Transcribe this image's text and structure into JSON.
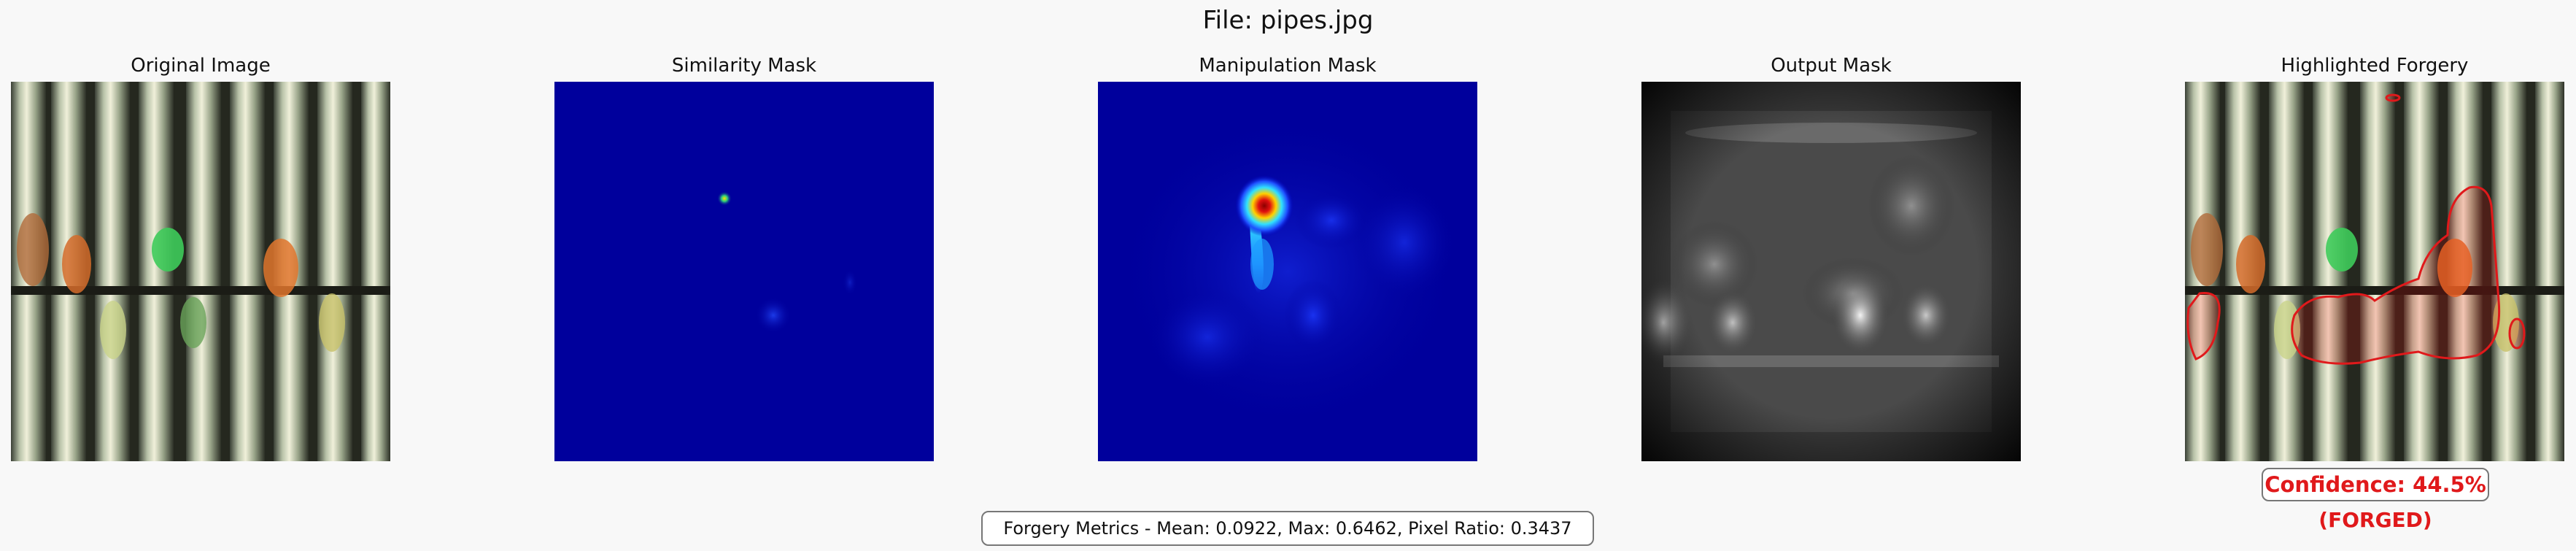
{
  "figure": {
    "title": "File: pipes.jpg"
  },
  "panels": [
    {
      "title": "Original Image"
    },
    {
      "title": "Similarity Mask"
    },
    {
      "title": "Manipulation Mask"
    },
    {
      "title": "Output Mask"
    },
    {
      "title": "Highlighted Forgery"
    }
  ],
  "result": {
    "confidence_label": "Confidence: 44.5%",
    "verdict": "(FORGED)"
  },
  "metrics": {
    "text": "Forgery Metrics - Mean: 0.0922, Max: 0.6462, Pixel Ratio: 0.3437"
  },
  "colors": {
    "forged": "#e0191b",
    "mask_background": "#00009c"
  }
}
